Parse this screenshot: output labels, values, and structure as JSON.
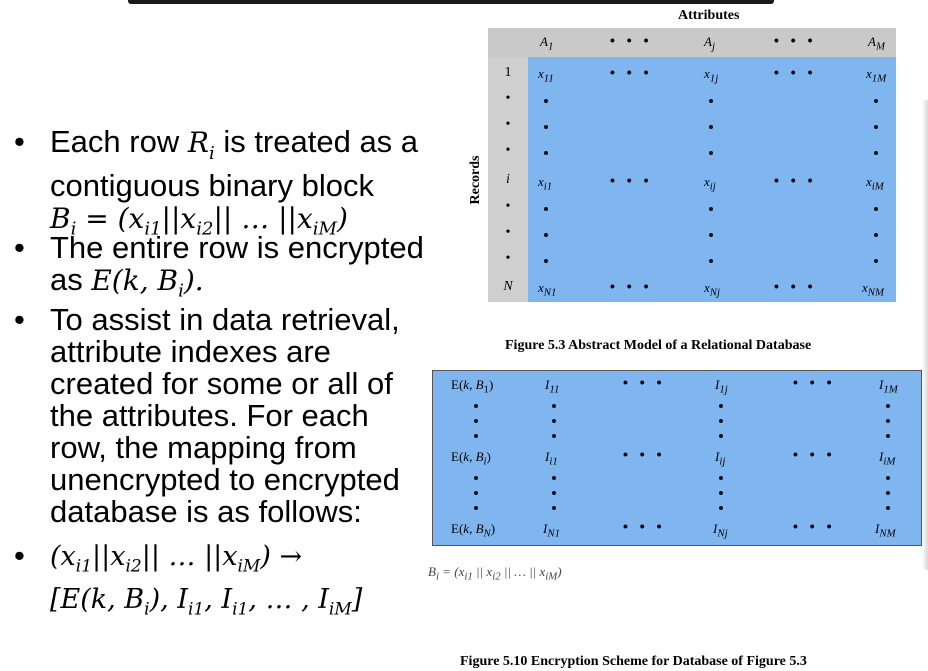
{
  "bullets": [
    {
      "pre": "Each row ",
      "math1": "R",
      "sub1": "i",
      "post": " is treated as a contiguous binary block ",
      "math2": "B_i = (x_{i1}||x_{i2}|| … ||x_{iM})"
    },
    {
      "text": "The entire row is encrypted as ",
      "math": "E(k, B_i)."
    },
    {
      "text": "To assist in data retrieval, attribute indexes are created for some or all of the attributes. For each row, the mapping from unencrypted to encrypted database is as follows:"
    },
    {
      "line1": "(x_{i1}||x_{i2}|| … ||x_{iM}) →",
      "line2": "[E(k, B_i), I_{i1}, I_{i1}, … , I_{iM}]"
    }
  ],
  "bullet_glyph": "•",
  "fig53": {
    "attributes_title": "Attributes",
    "records_label": "Records",
    "headers": [
      "A1",
      "Aj",
      "AM"
    ],
    "row_labels": [
      "1",
      "•",
      "•",
      "•",
      "i",
      "•",
      "•",
      "•",
      "N"
    ],
    "row1": [
      "x11",
      "x1j",
      "x1M"
    ],
    "rowi": [
      "xi1",
      "xij",
      "xiM"
    ],
    "rowN": [
      "xN1",
      "xNj",
      "xNM"
    ],
    "caption": "Figure 5.3 Abstract Model of a Relational Database"
  },
  "fig510": {
    "rows": [
      {
        "ekb": "E(k, B1)",
        "i": [
          "I11",
          "I1j",
          "I1M"
        ]
      },
      {
        "ekb": "E(k, Bi)",
        "i": [
          "Ii1",
          "Iij",
          "IiM"
        ]
      },
      {
        "ekb": "E(k, BN)",
        "i": [
          "IN1",
          "INj",
          "INM"
        ]
      }
    ],
    "bi_definition": "Bi = (xi1 || xi2 || … || xiM)",
    "caption": "Figure 5.10 Encryption Scheme for Database of Figure 5.3"
  },
  "colors": {
    "cell_blue": "#7fb6f0",
    "header_gray": "#c9c9c9"
  }
}
